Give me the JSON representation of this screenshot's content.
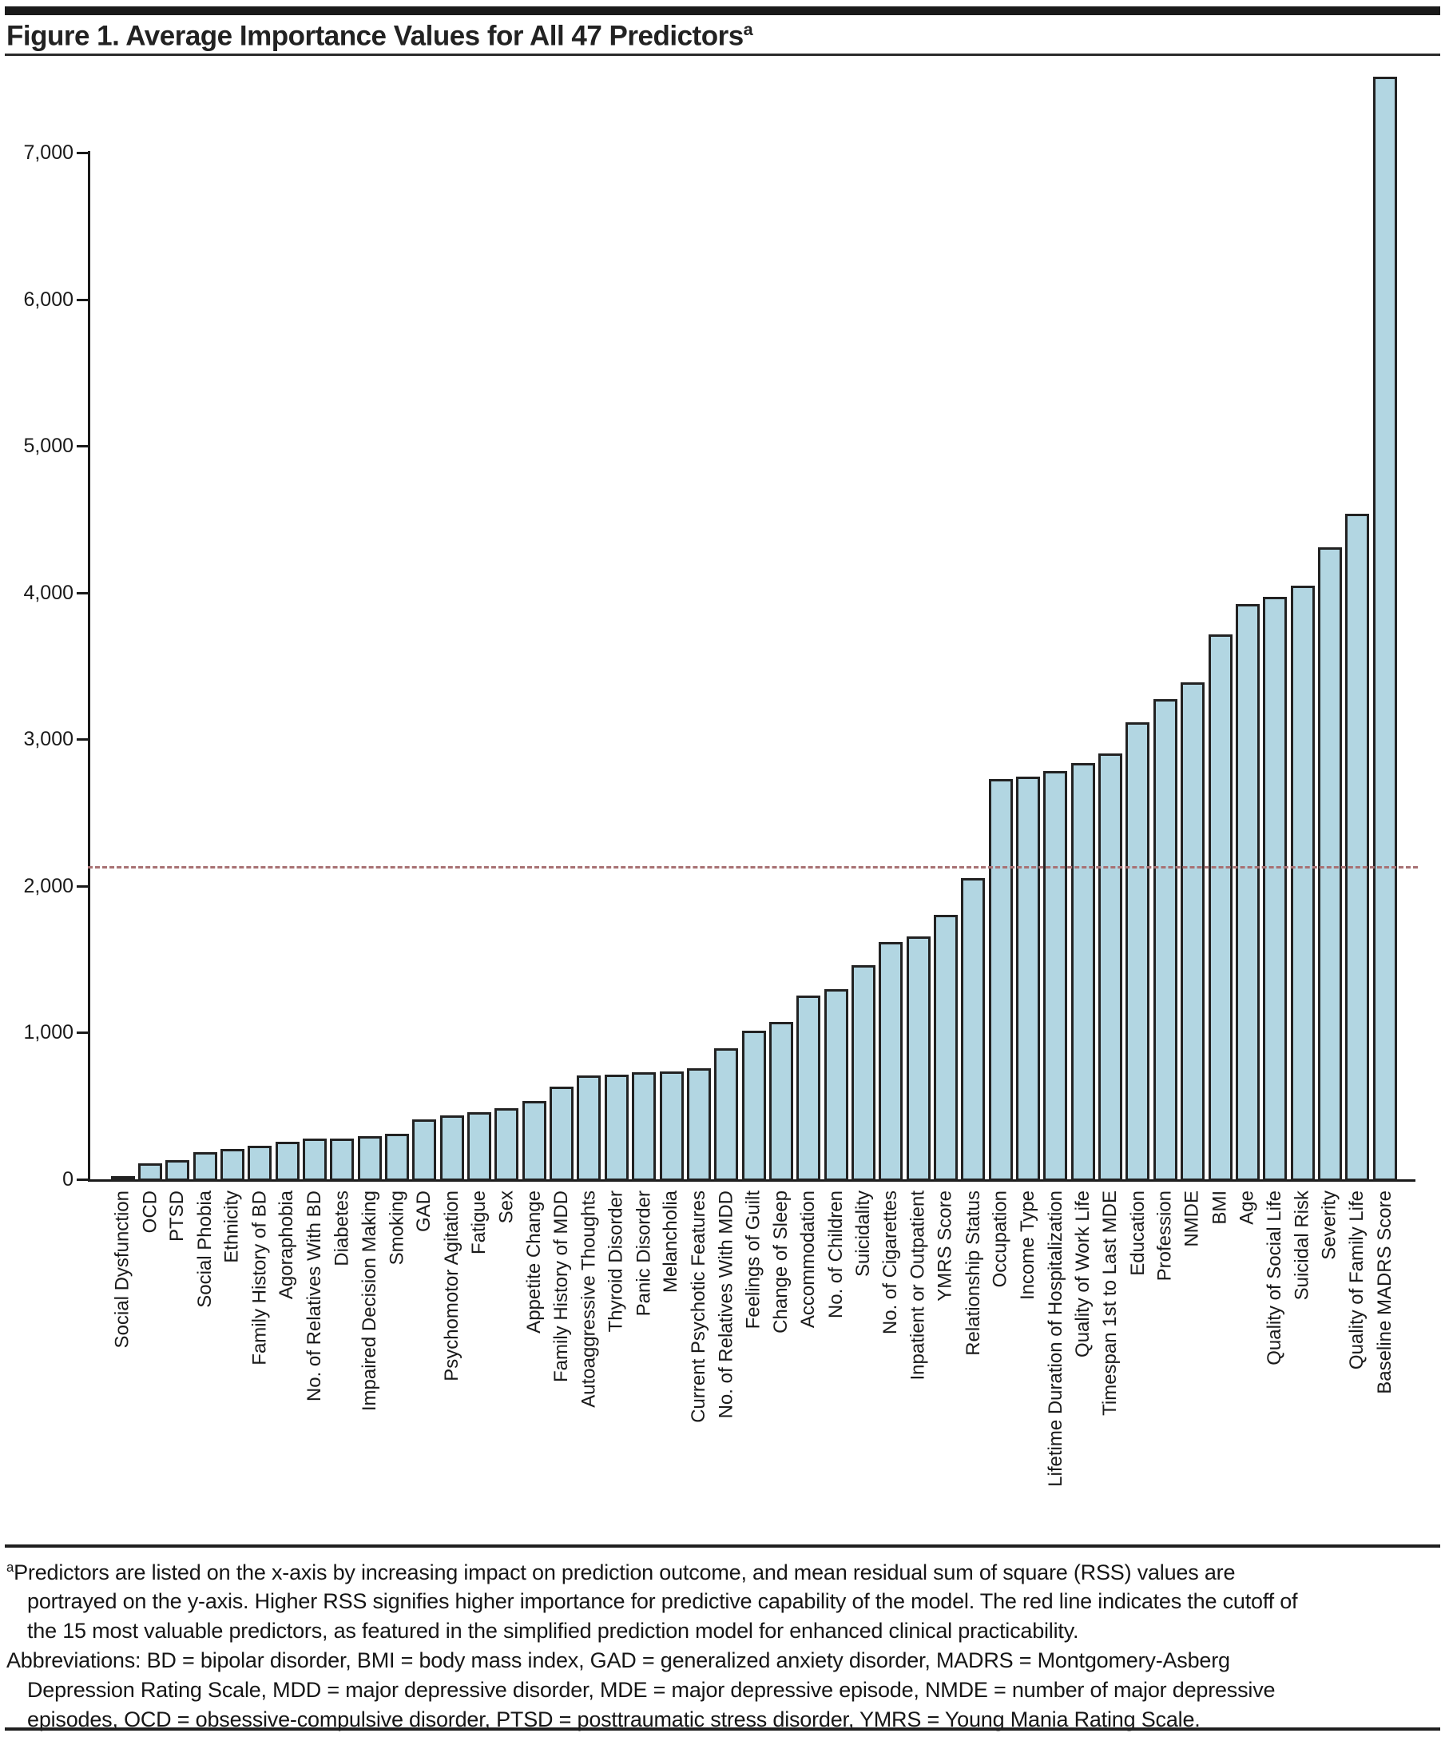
{
  "figure": {
    "title": "Figure 1. Average Importance Values for All 47 Predictors",
    "title_superscript": "a"
  },
  "chart_data": {
    "type": "bar",
    "title": "Average Importance Values for All 47 Predictors",
    "xlabel": "",
    "ylabel": "",
    "categories": [
      "Social Dysfunction",
      "OCD",
      "PTSD",
      "Social Phobia",
      "Ethnicity",
      "Family History of BD",
      "Agoraphobia",
      "No. of Relatives With BD",
      "Diabetes",
      "Impaired Decision Making",
      "Smoking",
      "GAD",
      "Psychomotor Agitation",
      "Fatigue",
      "Sex",
      "Appetite Change",
      "Family History of MDD",
      "Autoaggressive Thoughts",
      "Thyroid Disorder",
      "Panic Disorder",
      "Melancholia",
      "Current Psychotic Features",
      "No. of Relatives With MDD",
      "Feelings of Guilt",
      "Change of Sleep",
      "Accommodation",
      "No. of Children",
      "Suicidality",
      "No. of Cigarettes",
      "Inpatient or Outpatient",
      "YMRS Score",
      "Relationship Status",
      "Occupation",
      "Income Type",
      "Lifetime Duration of Hospitalization",
      "Quality of Work Life",
      "Timespan 1st to Last MDE",
      "Education",
      "Profession",
      "NMDE",
      "BMI",
      "Age",
      "Quality of Social Life",
      "Suicidal Risk",
      "Severity",
      "Quality of Family Life",
      "Baseline MADRS Score"
    ],
    "values": [
      35,
      120,
      140,
      198,
      220,
      242,
      266,
      287,
      290,
      304,
      322,
      421,
      448,
      468,
      494,
      546,
      643,
      718,
      723,
      741,
      748,
      768,
      903,
      1026,
      1086,
      1266,
      1308,
      1471,
      1629,
      1669,
      1816,
      2067,
      2739,
      2758,
      2794,
      2848,
      2912,
      3128,
      3284,
      3400,
      3724,
      3933,
      3980,
      4060,
      4318,
      4548,
      7530
    ],
    "yticks": [
      0,
      1000,
      2000,
      3000,
      4000,
      5000,
      6000,
      7000
    ],
    "ytick_labels": [
      "0",
      "1,000",
      "2,000",
      "3,000",
      "4,000",
      "5,000",
      "6,000",
      "7,000"
    ],
    "ylim": [
      0,
      7600
    ],
    "grid": false,
    "legend": false,
    "bar_fill_color": "#b2d6e2",
    "bar_border_color": "#222222",
    "cutoff_line": {
      "value": 2130,
      "style": "dashed",
      "color": "#a87173"
    }
  },
  "footnote": {
    "superscript": "a",
    "line1": "Predictors are listed on the x-axis by increasing impact on prediction outcome, and mean residual sum of square (RSS) values are",
    "line2": "portrayed on the y-axis. Higher RSS signifies higher importance for predictive capability of the model. The red line indicates the cutoff of",
    "line3": "the 15 most valuable predictors, as featured in the simplified prediction model for enhanced clinical practicability.",
    "line4": "Abbreviations: BD = bipolar disorder, BMI = body mass index, GAD = generalized anxiety disorder, MADRS = Montgomery-Asberg",
    "line5": "Depression Rating Scale, MDD = major depressive disorder, MDE = major depressive episode, NMDE = number of major depressive",
    "line6": "episodes, OCD = obsessive-compulsive disorder, PTSD = posttraumatic stress disorder, YMRS = Young Mania Rating Scale."
  }
}
